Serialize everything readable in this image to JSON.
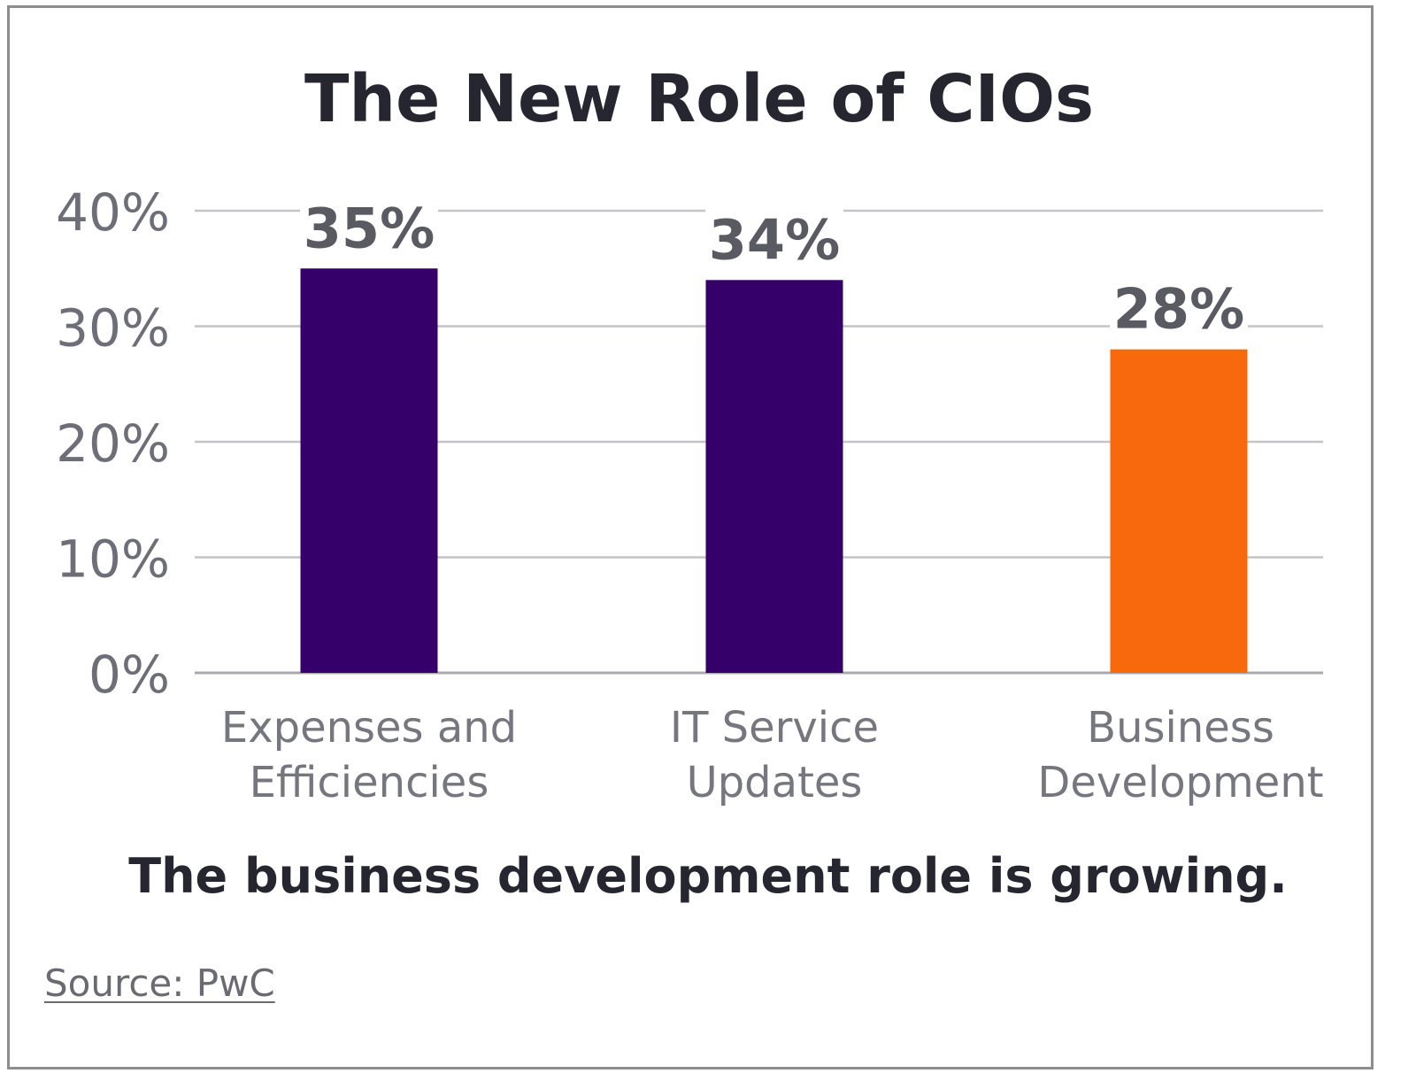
{
  "chart_data": {
    "type": "bar",
    "title": "The New Role of CIOs",
    "categories": [
      [
        "Expenses and",
        "Efficiencies"
      ],
      [
        "IT Service",
        "Updates"
      ],
      [
        "Business",
        "Development"
      ]
    ],
    "values": [
      35,
      34,
      28
    ],
    "value_labels": [
      "35%",
      "34%",
      "28%"
    ],
    "bar_colors": [
      "#36006b",
      "#36006b",
      "#f7690c"
    ],
    "ylim": [
      0,
      40
    ],
    "yticks": [
      0,
      10,
      20,
      30,
      40
    ],
    "ytick_labels": [
      "0%",
      "10%",
      "20%",
      "30%",
      "40%"
    ],
    "grid": true,
    "legend": "none"
  },
  "caption": "The business development role is growing.",
  "source": {
    "label": "Source: PwC"
  }
}
